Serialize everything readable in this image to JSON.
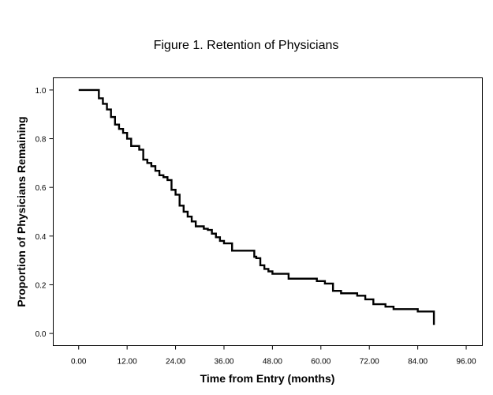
{
  "chart_data": {
    "type": "line",
    "subtype": "step",
    "title": "Figure 1.  Retention of Physicians",
    "xlabel": "Time from Entry (months)",
    "ylabel": "Proportion of Physicians Remaining",
    "xlim": [
      -6.3,
      100
    ],
    "ylim": [
      -0.05,
      1.05
    ],
    "xticks": [
      0,
      12,
      24,
      36,
      48,
      60,
      72,
      84,
      96
    ],
    "xtick_labels": [
      "0.00",
      "12.00",
      "24.00",
      "36.00",
      "48.00",
      "60.00",
      "72.00",
      "84.00",
      "96.00"
    ],
    "yticks": [
      0.0,
      0.2,
      0.4,
      0.6,
      0.8,
      1.0
    ],
    "ytick_labels": [
      "0.0",
      "0.2",
      "0.4",
      "0.6",
      "0.8",
      "1.0"
    ],
    "grid": false,
    "line_color": "#000000",
    "series": [
      {
        "x": [
          0.0,
          5.0,
          6.0,
          7.0,
          8.0,
          9.0,
          10.0,
          11.0,
          12.0,
          13.0,
          15.0,
          16.0,
          17.0,
          18.0,
          19.0,
          20.0,
          21.0,
          22.0,
          23.0,
          24.0,
          25.0,
          26.0,
          27.0,
          28.0,
          29.0,
          31.0,
          32.0,
          33.0,
          34.0,
          35.0,
          36.0,
          38.0,
          43.5,
          44.0,
          45.0,
          46.0,
          47.0,
          48.0,
          52.0,
          59.0,
          61.0,
          63.0,
          65.0,
          69.0,
          71.0,
          73.0,
          76.0,
          78.0,
          84.0,
          88.0
        ],
        "y": [
          1.0,
          0.966,
          0.943,
          0.92,
          0.889,
          0.858,
          0.84,
          0.824,
          0.8,
          0.77,
          0.755,
          0.714,
          0.7,
          0.687,
          0.668,
          0.65,
          0.642,
          0.63,
          0.59,
          0.57,
          0.525,
          0.5,
          0.48,
          0.46,
          0.44,
          0.43,
          0.425,
          0.41,
          0.395,
          0.38,
          0.37,
          0.34,
          0.315,
          0.309,
          0.28,
          0.265,
          0.255,
          0.245,
          0.225,
          0.215,
          0.205,
          0.175,
          0.165,
          0.155,
          0.14,
          0.12,
          0.11,
          0.1,
          0.09,
          0.067
        ]
      }
    ],
    "step_end": {
      "x": 88.0,
      "y": 0.035
    }
  }
}
